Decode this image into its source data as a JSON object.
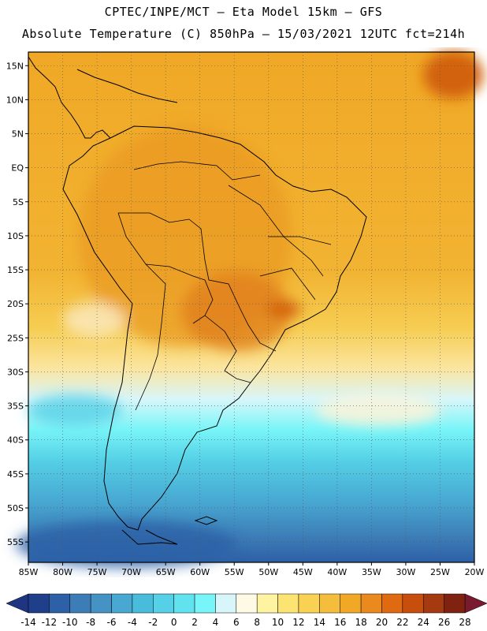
{
  "header": {
    "line1": "CPTEC/INPE/MCT –  Eta Model 15km – GFS",
    "line2": "Absolute Temperature (C) 850hPa – 15/03/2021 12UTC fct=214h"
  },
  "map": {
    "lat_ticks": [
      "15N",
      "10N",
      "5N",
      "EQ",
      "5S",
      "10S",
      "15S",
      "20S",
      "25S",
      "30S",
      "35S",
      "40S",
      "45S",
      "50S",
      "55S"
    ],
    "lon_ticks": [
      "85W",
      "80W",
      "75W",
      "70W",
      "65W",
      "60W",
      "55W",
      "50W",
      "45W",
      "40W",
      "35W",
      "30W",
      "25W",
      "20W"
    ],
    "lat_range": [
      -58,
      17
    ],
    "lon_range": [
      -85,
      -20
    ],
    "gridlines": "dotted"
  },
  "colorbar": {
    "labels": [
      "-14",
      "-12",
      "-10",
      "-8",
      "-6",
      "-4",
      "-2",
      "0",
      "2",
      "4",
      "6",
      "8",
      "10",
      "12",
      "14",
      "16",
      "18",
      "20",
      "22",
      "24",
      "26",
      "28"
    ],
    "colors": [
      "#1f3f8a",
      "#2d60a6",
      "#3d7db7",
      "#4593c4",
      "#48a8d2",
      "#49bcdc",
      "#55d0e6",
      "#61e2ef",
      "#78f5f8",
      "#d8f6fa",
      "#fffae6",
      "#fdf3a0",
      "#fce472",
      "#f9d253",
      "#f4bd3b",
      "#f0a826",
      "#e9891e",
      "#e06a11",
      "#c84e0e",
      "#a53a10",
      "#7f2210"
    ],
    "min_color": "#1e3583",
    "max_color": "#7a1a2e"
  }
}
